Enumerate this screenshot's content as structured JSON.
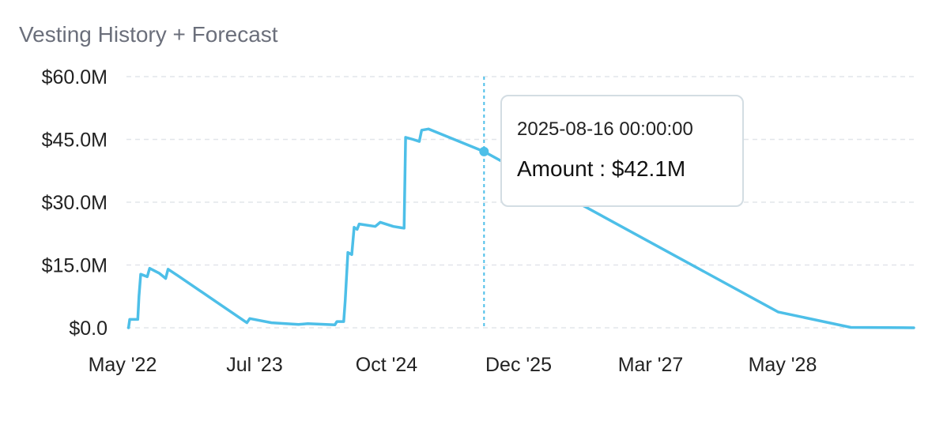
{
  "chart_data": {
    "type": "line",
    "title": "Vesting History + Forecast",
    "xlabel": "",
    "ylabel": "",
    "x_ticks": [
      "May '22",
      "Jul '23",
      "Oct '24",
      "Dec '25",
      "Mar '27",
      "May '28"
    ],
    "y_ticks": [
      "$0.0",
      "$15.0M",
      "$30.0M",
      "$45.0M",
      "$60.0M"
    ],
    "ylim": [
      0,
      60
    ],
    "x_range": [
      "2022-05-01",
      "2029-08-01"
    ],
    "grid": true,
    "line_color": "#4dbfe8",
    "series": [
      {
        "name": "Amount",
        "points": [
          [
            "2022-05-08",
            0.0
          ],
          [
            "2022-05-12",
            2.0
          ],
          [
            "2022-06-08",
            2.0
          ],
          [
            "2022-06-12",
            7.5
          ],
          [
            "2022-06-18",
            12.8
          ],
          [
            "2022-07-10",
            12.2
          ],
          [
            "2022-07-18",
            14.2
          ],
          [
            "2022-08-20",
            13.0
          ],
          [
            "2022-09-10",
            11.8
          ],
          [
            "2022-09-18",
            14.0
          ],
          [
            "2022-10-20",
            12.5
          ],
          [
            "2023-06-10",
            1.2
          ],
          [
            "2023-06-20",
            2.2
          ],
          [
            "2023-09-01",
            1.2
          ],
          [
            "2023-12-01",
            0.8
          ],
          [
            "2024-01-01",
            1.0
          ],
          [
            "2024-04-01",
            0.7
          ],
          [
            "2024-04-08",
            1.5
          ],
          [
            "2024-05-01",
            1.5
          ],
          [
            "2024-05-06",
            6.5
          ],
          [
            "2024-05-15",
            18.0
          ],
          [
            "2024-05-28",
            17.5
          ],
          [
            "2024-06-05",
            24.0
          ],
          [
            "2024-06-15",
            23.5
          ],
          [
            "2024-06-22",
            24.8
          ],
          [
            "2024-08-15",
            24.2
          ],
          [
            "2024-09-01",
            25.2
          ],
          [
            "2024-10-15",
            24.2
          ],
          [
            "2024-11-20",
            23.8
          ],
          [
            "2024-11-25",
            45.5
          ],
          [
            "2024-12-20",
            45.0
          ],
          [
            "2025-01-10",
            44.5
          ],
          [
            "2025-01-18",
            47.2
          ],
          [
            "2025-02-10",
            47.5
          ],
          [
            "2025-08-16",
            42.1
          ],
          [
            "2028-05-01",
            3.8
          ],
          [
            "2029-01-01",
            0.1
          ],
          [
            "2029-08-01",
            0.0
          ]
        ]
      }
    ],
    "hover": {
      "x": "2025-08-16",
      "y": 42.1
    }
  },
  "tooltip": {
    "date": "2025-08-16 00:00:00",
    "amount": "Amount : $42.1M"
  },
  "colors": {
    "line": "#4dbfe8",
    "grid": "#e2e5ea",
    "axis_text": "#222222",
    "title": "#6b6f7b"
  }
}
